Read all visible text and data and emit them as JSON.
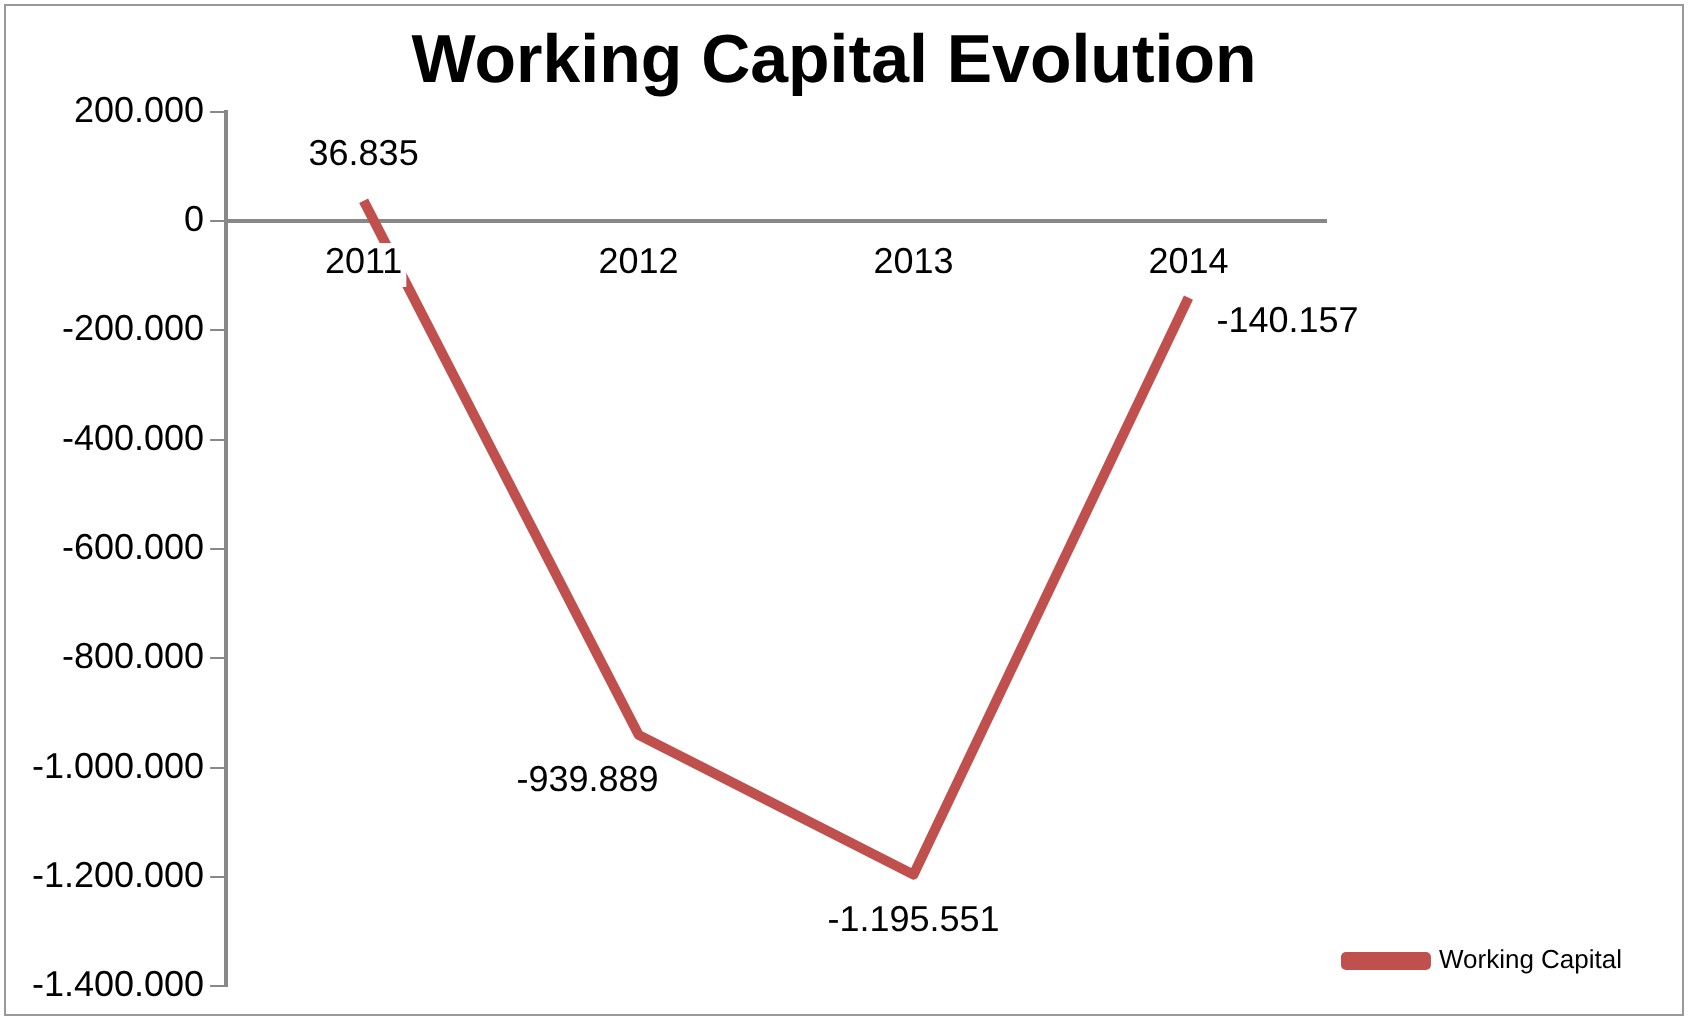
{
  "chart_data": {
    "type": "line",
    "title": "Working Capital Evolution",
    "categories": [
      "2011",
      "2012",
      "2013",
      "2014"
    ],
    "series": [
      {
        "name": "Working Capital",
        "color": "#c0504d",
        "values": [
          36835,
          -939889,
          -1195551,
          -140157
        ],
        "value_labels": [
          "36.835",
          "-939.889",
          "-1.195.551",
          "-140.157"
        ]
      }
    ],
    "ylim": [
      -1400000,
      200000
    ],
    "yticks": [
      {
        "value": -1400000,
        "label": "-1.400.000"
      },
      {
        "value": -1200000,
        "label": "-1.200.000"
      },
      {
        "value": -1000000,
        "label": "-1.000.000"
      },
      {
        "value": -800000,
        "label": "-800.000"
      },
      {
        "value": -600000,
        "label": "-600.000"
      },
      {
        "value": -400000,
        "label": "-400.000"
      },
      {
        "value": -200000,
        "label": "-200.000"
      },
      {
        "value": 0,
        "label": "0"
      },
      {
        "value": 200000,
        "label": "200.000"
      }
    ],
    "grid": false,
    "legend": "bottom right",
    "marker": "none",
    "line_style": "solid"
  }
}
